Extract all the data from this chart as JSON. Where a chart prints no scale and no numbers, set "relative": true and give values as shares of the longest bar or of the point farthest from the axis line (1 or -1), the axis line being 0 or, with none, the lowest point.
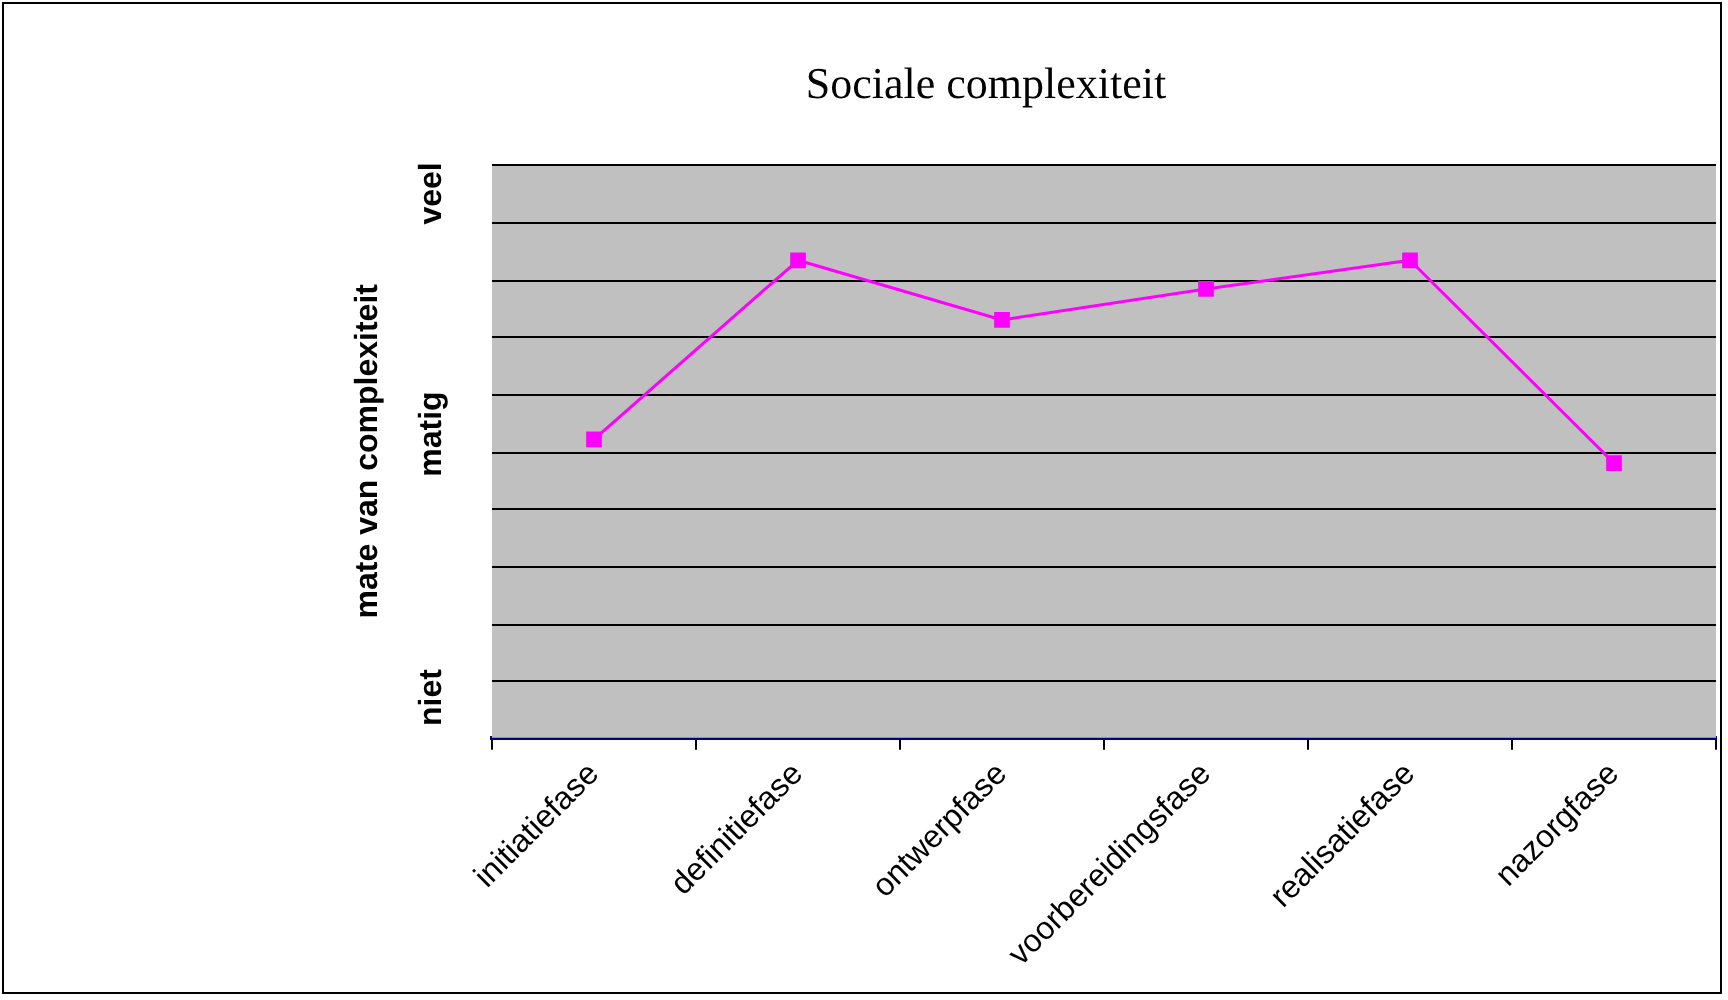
{
  "chart_data": {
    "type": "line",
    "title": "Sociale complexiteit",
    "ylabel": "mate van complexiteit",
    "categories": [
      "initiatiefase",
      "definitiefase",
      "ontwerpfase",
      "voorbereidingsfase",
      "realisatiefase",
      "nazorgfase"
    ],
    "series": [
      {
        "color": "#ff00ff",
        "values": [
          0.625,
          1,
          0.875,
          0.94,
          1,
          0.575
        ]
      }
    ],
    "relative": true,
    "annotations": [
      "niet",
      "matig",
      "veel"
    ],
    "grid": "y",
    "legend": false,
    "marker": "square",
    "line_style": "solid"
  }
}
